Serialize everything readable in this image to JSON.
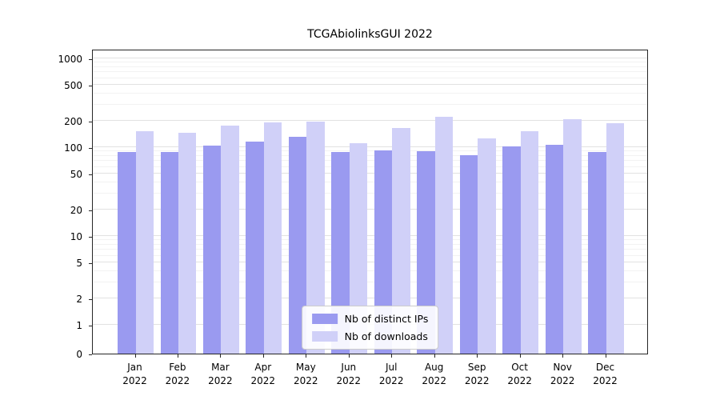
{
  "figure": {
    "title": "TCGAbiolinksGUI 2022"
  },
  "chart_data": {
    "type": "bar",
    "title": "TCGAbiolinksGUI 2022",
    "xlabel": "",
    "ylabel": "",
    "yscale": "symlog",
    "grid": true,
    "legend_position": "lower center",
    "ylim": [
      0,
      1000
    ],
    "yticks": [
      0,
      1,
      2,
      5,
      10,
      20,
      50,
      100,
      200,
      500,
      1000
    ],
    "categories": [
      "Jan 2022",
      "Feb 2022",
      "Mar 2022",
      "Apr 2022",
      "May 2022",
      "Jun 2022",
      "Jul 2022",
      "Aug 2022",
      "Sep 2022",
      "Oct 2022",
      "Nov 2022",
      "Dec 2022"
    ],
    "series": [
      {
        "name": "Nb of distinct IPs",
        "color": "#9a9af0",
        "values": [
          88,
          88,
          105,
          115,
          132,
          88,
          92,
          91,
          82,
          102,
          106,
          88
        ]
      },
      {
        "name": "Nb of downloads",
        "color": "#d0d0f8",
        "values": [
          152,
          145,
          175,
          190,
          195,
          112,
          163,
          222,
          125,
          152,
          208,
          188
        ]
      }
    ]
  }
}
